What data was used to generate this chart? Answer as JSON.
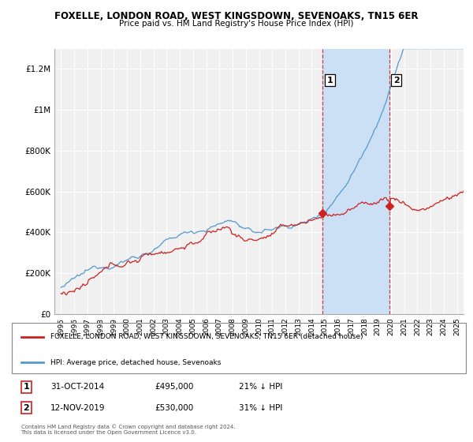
{
  "title": "FOXELLE, LONDON ROAD, WEST KINGSDOWN, SEVENOAKS, TN15 6ER",
  "subtitle": "Price paid vs. HM Land Registry's House Price Index (HPI)",
  "xlim": [
    1994.5,
    2025.5
  ],
  "ylim": [
    0,
    1300000
  ],
  "yticks": [
    0,
    200000,
    400000,
    600000,
    800000,
    1000000,
    1200000
  ],
  "ytick_labels": [
    "£0",
    "£200K",
    "£400K",
    "£600K",
    "£800K",
    "£1M",
    "£1.2M"
  ],
  "xticks": [
    1995,
    1996,
    1997,
    1998,
    1999,
    2000,
    2001,
    2002,
    2003,
    2004,
    2005,
    2006,
    2007,
    2008,
    2009,
    2010,
    2011,
    2012,
    2013,
    2014,
    2015,
    2016,
    2017,
    2018,
    2019,
    2020,
    2021,
    2022,
    2023,
    2024,
    2025
  ],
  "sale1_x": 2014.833,
  "sale1_y": 495000,
  "sale2_x": 2019.875,
  "sale2_y": 530000,
  "vline1_x": 2014.833,
  "vline2_x": 2019.875,
  "shade_color": "#cce0f5",
  "vline_color": "#cc2222",
  "hpi_line_color": "#5599cc",
  "price_line_color": "#cc2222",
  "legend_label1": "FOXELLE, LONDON ROAD, WEST KINGSDOWN, SEVENOAKS, TN15 6ER (detached house)",
  "legend_label2": "HPI: Average price, detached house, Sevenoaks",
  "table_row1": [
    "1",
    "31-OCT-2014",
    "£495,000",
    "21% ↓ HPI"
  ],
  "table_row2": [
    "2",
    "12-NOV-2019",
    "£530,000",
    "31% ↓ HPI"
  ],
  "footnote": "Contains HM Land Registry data © Crown copyright and database right 2024.\nThis data is licensed under the Open Government Licence v3.0.",
  "background_color": "#ffffff",
  "plot_bg_color": "#f0f0f0"
}
